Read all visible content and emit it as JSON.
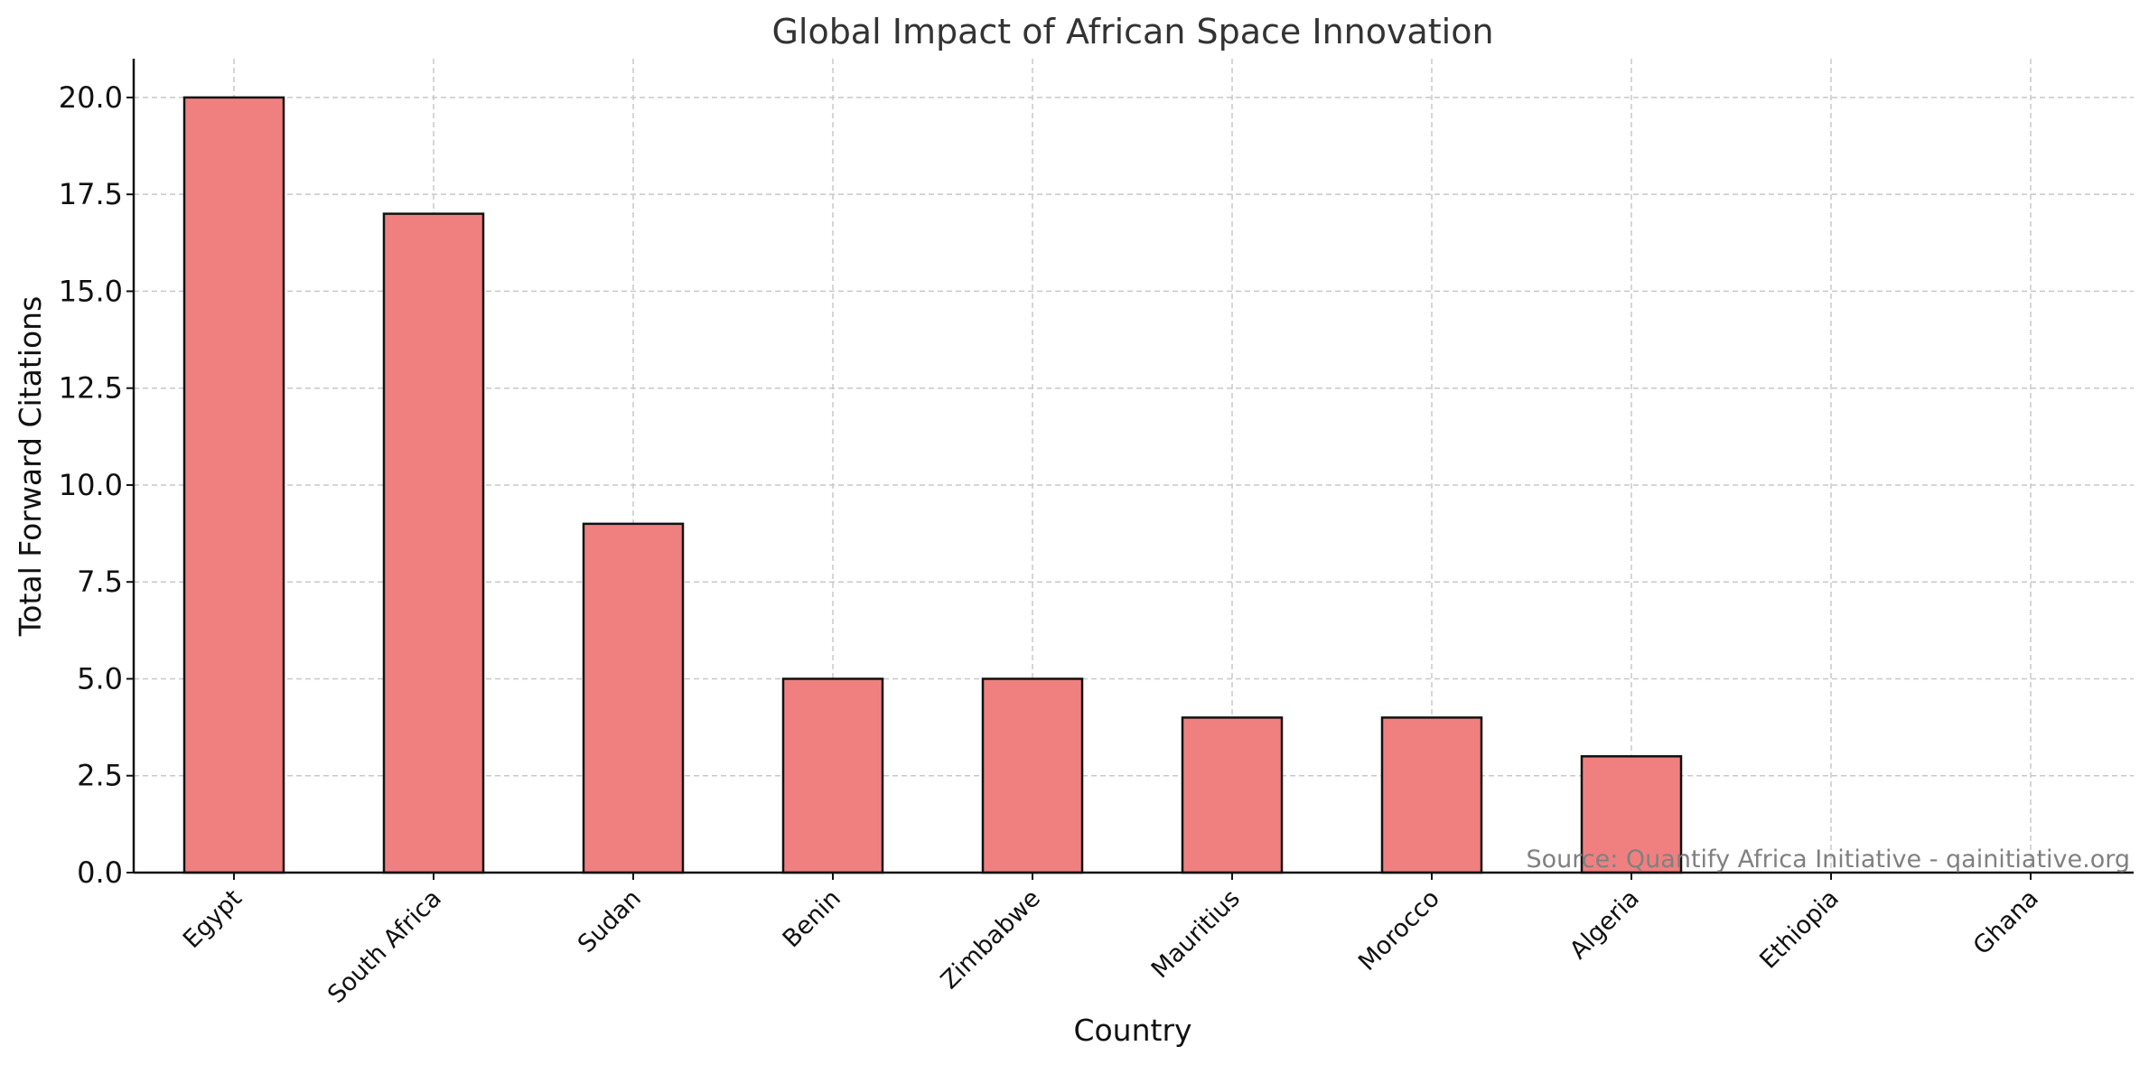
{
  "chart_data": {
    "type": "bar",
    "title": "Global Impact of African Space Innovation",
    "xlabel": "Country",
    "ylabel": "Total Forward Citations",
    "categories": [
      "Egypt",
      "South Africa",
      "Sudan",
      "Benin",
      "Zimbabwe",
      "Mauritius",
      "Morocco",
      "Algeria",
      "Ethiopia",
      "Ghana"
    ],
    "values": [
      20,
      17,
      9,
      5,
      5,
      4,
      4,
      3,
      0,
      0
    ],
    "ylim": [
      0,
      21
    ],
    "yticks": [
      "0.0",
      "2.5",
      "5.0",
      "7.5",
      "10.0",
      "12.5",
      "15.0",
      "17.5",
      "20.0"
    ],
    "grid": true,
    "bar_color": "#f08080",
    "bar_edge_color": "#111111",
    "annotation": "Source: Quantify Africa Initiative - qainitiative.org"
  }
}
